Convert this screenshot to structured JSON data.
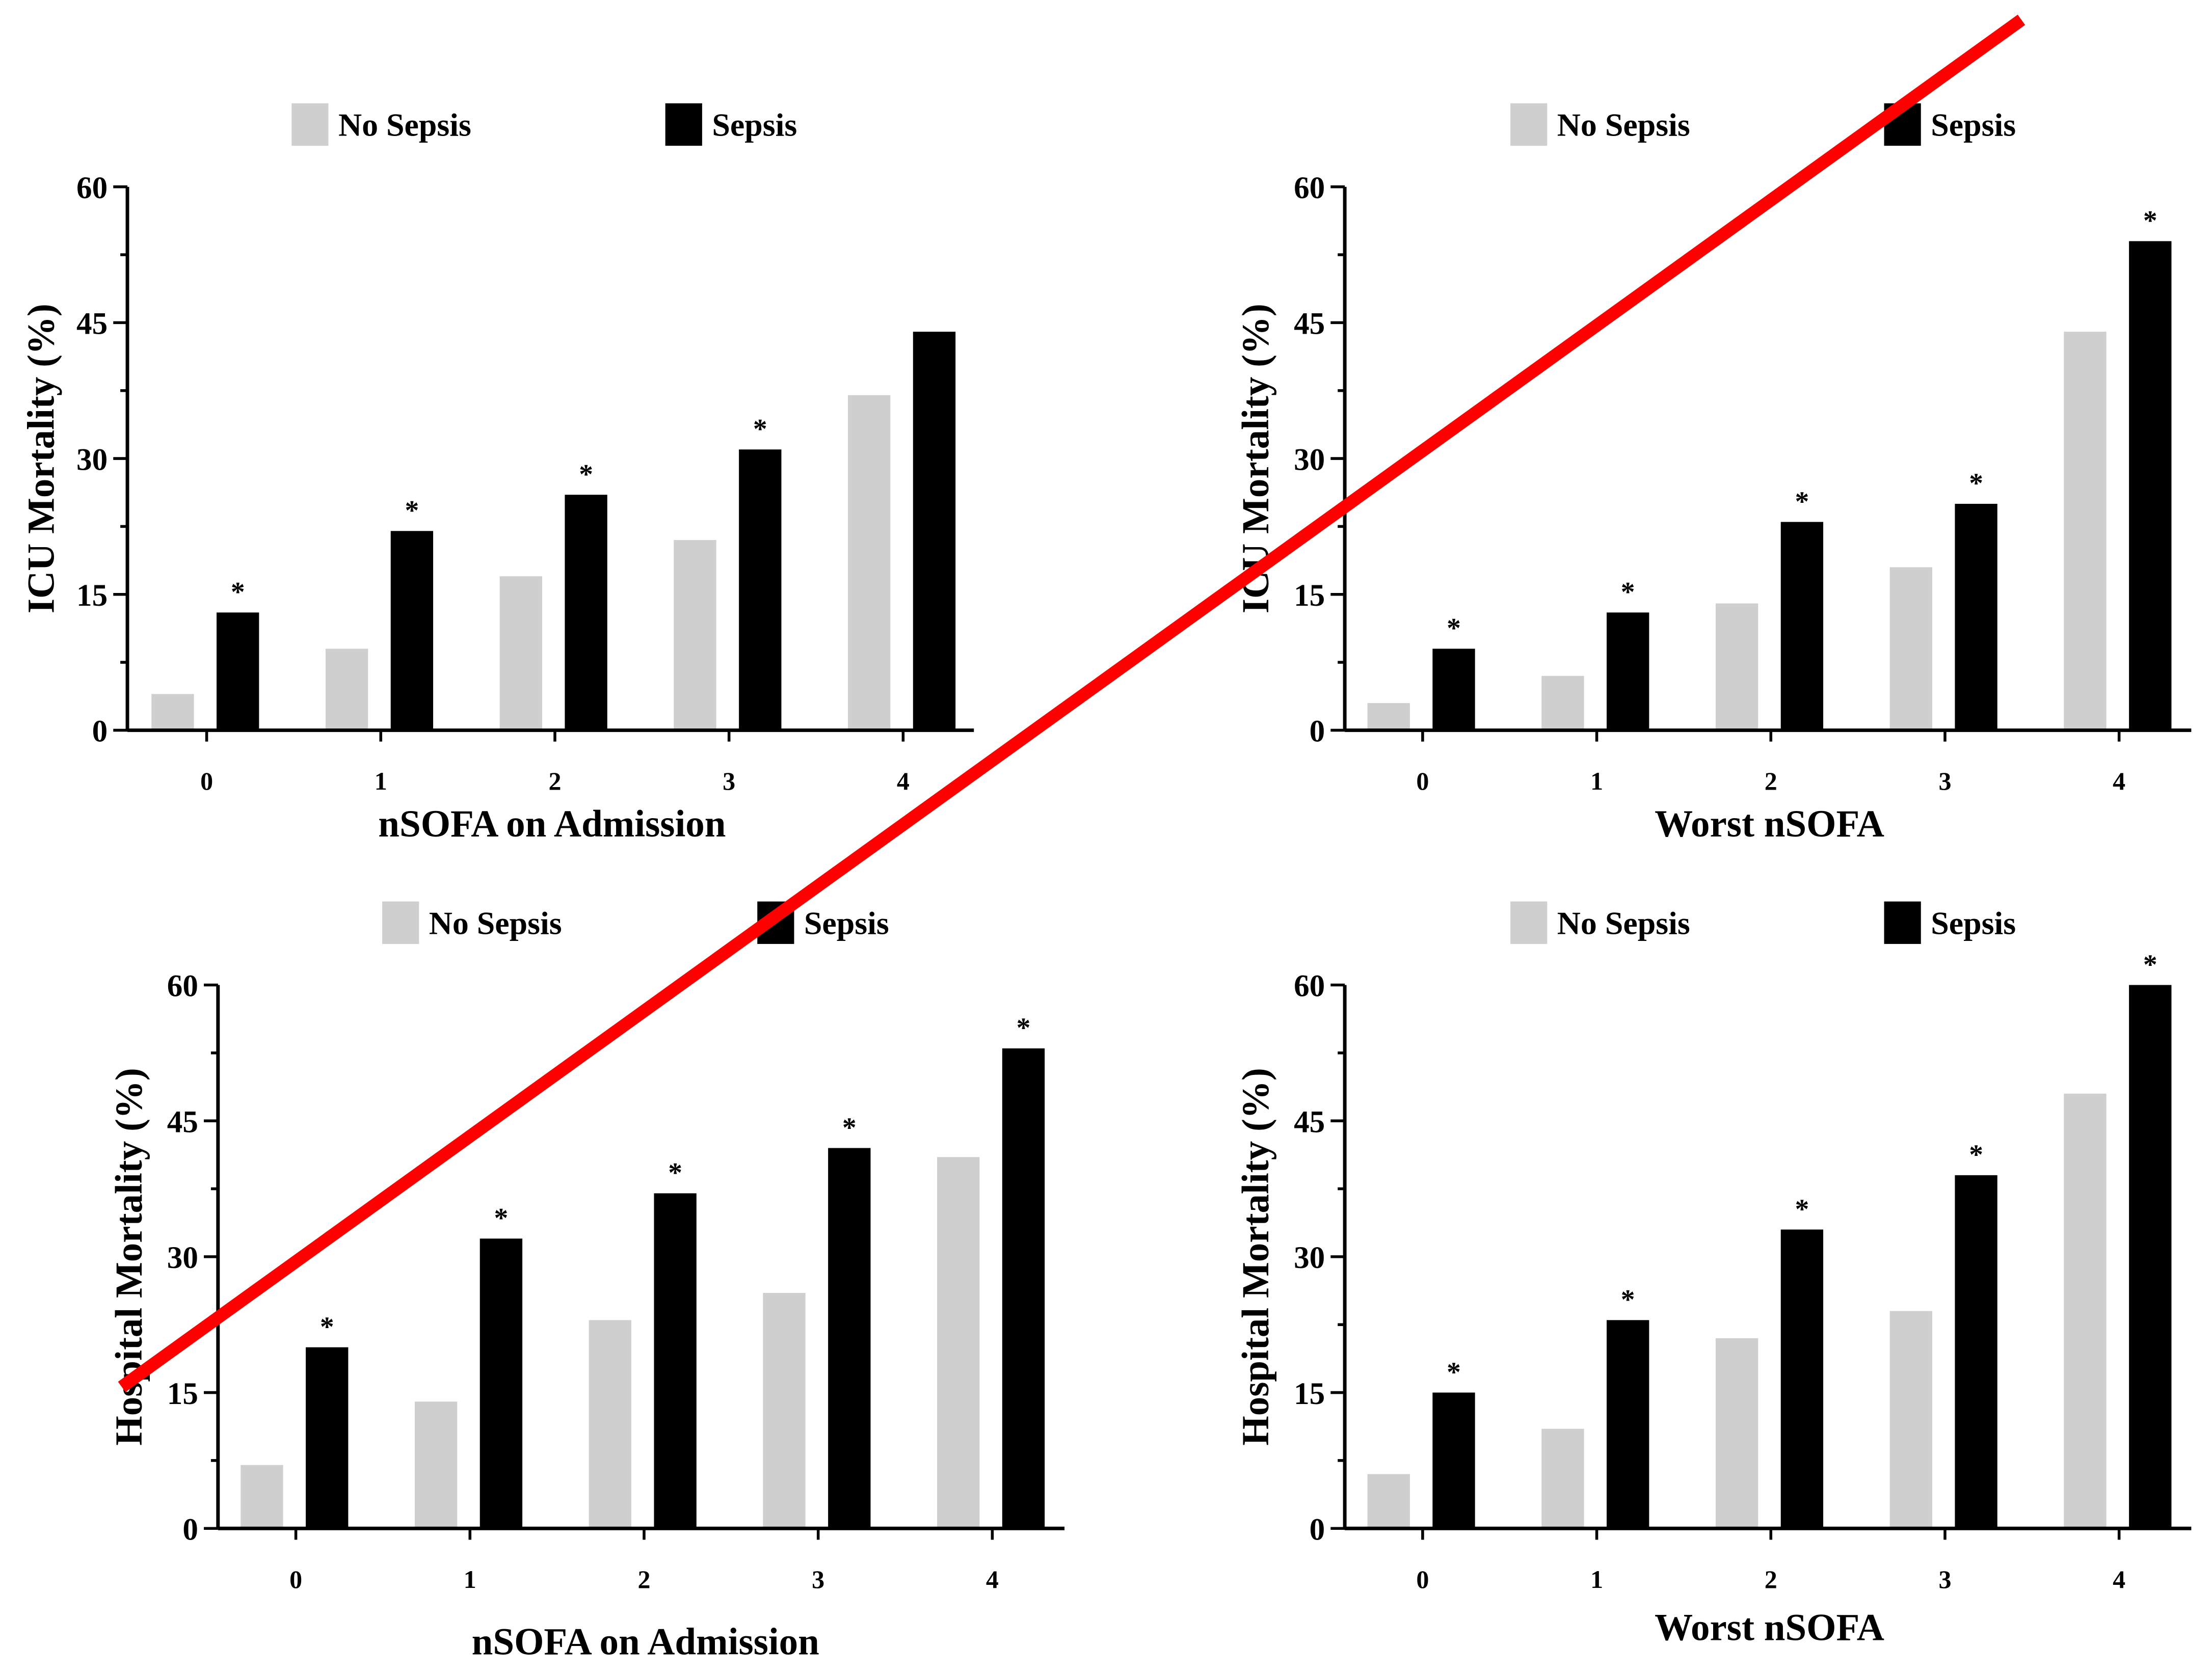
{
  "legend": {
    "no_sepsis": "No Sepsis",
    "sepsis": "Sepsis"
  },
  "colors": {
    "no_sepsis": "#cfcfcf",
    "sepsis": "#000000",
    "axis": "#000000",
    "annotation_line": "#ff0000"
  },
  "chart_data": [
    {
      "id": "icu-admission",
      "type": "bar",
      "title": "",
      "xlabel": "nSOFA on Admission",
      "ylabel": "ICU Mortality (%)",
      "categories": [
        "0",
        "1",
        "2",
        "3",
        "4"
      ],
      "yticks": [
        "0",
        "15",
        "30",
        "45",
        "60"
      ],
      "ylim": [
        0,
        60
      ],
      "series": [
        {
          "name": "No Sepsis",
          "values": [
            4,
            9,
            17,
            21,
            37
          ]
        },
        {
          "name": "Sepsis",
          "values": [
            13,
            22,
            26,
            31,
            44
          ]
        }
      ],
      "significant": [
        true,
        true,
        true,
        true,
        false
      ],
      "significance_marker": "*"
    },
    {
      "id": "icu-worst",
      "type": "bar",
      "title": "",
      "xlabel": "Worst nSOFA",
      "ylabel": "ICU Mortality (%)",
      "categories": [
        "0",
        "1",
        "2",
        "3",
        "4"
      ],
      "yticks": [
        "0",
        "15",
        "30",
        "45",
        "60"
      ],
      "ylim": [
        0,
        60
      ],
      "series": [
        {
          "name": "No Sepsis",
          "values": [
            3,
            6,
            14,
            18,
            44
          ]
        },
        {
          "name": "Sepsis",
          "values": [
            9,
            13,
            23,
            25,
            54
          ]
        }
      ],
      "significant": [
        true,
        true,
        true,
        true,
        true
      ],
      "significance_marker": "*"
    },
    {
      "id": "hospital-admission",
      "type": "bar",
      "title": "",
      "xlabel": "nSOFA on Admission",
      "ylabel": "Hospital Mortality (%)",
      "categories": [
        "0",
        "1",
        "2",
        "3",
        "4"
      ],
      "yticks": [
        "0",
        "15",
        "30",
        "45",
        "60"
      ],
      "ylim": [
        0,
        60
      ],
      "series": [
        {
          "name": "No Sepsis",
          "values": [
            7,
            14,
            23,
            26,
            41
          ]
        },
        {
          "name": "Sepsis",
          "values": [
            20,
            32,
            37,
            42,
            53
          ]
        }
      ],
      "significant": [
        true,
        true,
        true,
        true,
        true
      ],
      "significance_marker": "*"
    },
    {
      "id": "hospital-worst",
      "type": "bar",
      "title": "",
      "xlabel": "Worst nSOFA",
      "ylabel": "Hospital Mortality (%)",
      "categories": [
        "0",
        "1",
        "2",
        "3",
        "4"
      ],
      "yticks": [
        "0",
        "15",
        "30",
        "45",
        "60"
      ],
      "ylim": [
        0,
        60
      ],
      "series": [
        {
          "name": "No Sepsis",
          "values": [
            6,
            11,
            21,
            24,
            48
          ]
        },
        {
          "name": "Sepsis",
          "values": [
            15,
            23,
            33,
            39,
            60
          ]
        }
      ],
      "significant": [
        true,
        true,
        true,
        true,
        true
      ],
      "significance_marker": "*"
    }
  ]
}
